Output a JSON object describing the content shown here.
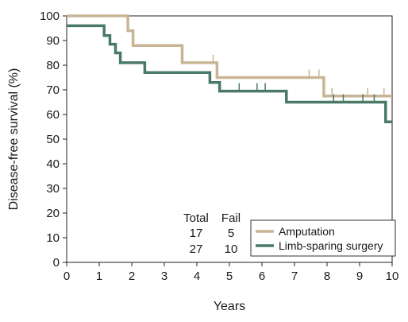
{
  "chart_data": {
    "type": "line",
    "xlabel": "Years",
    "ylabel": "Disease-free survival (%)",
    "xlim": [
      0,
      10
    ],
    "ylim": [
      0,
      100
    ],
    "x_ticks": [
      "0",
      "1",
      "2",
      "3",
      "4",
      "5",
      "6",
      "7",
      "8",
      "9",
      "10"
    ],
    "y_ticks": [
      "0",
      "10",
      "20",
      "30",
      "40",
      "50",
      "60",
      "70",
      "80",
      "90",
      "100"
    ],
    "grid": false,
    "legend_position": "bottom-right",
    "series": [
      {
        "name": "Amputation",
        "color": "#c8b596",
        "total": "17",
        "fail": "5",
        "x": [
          0,
          1.88,
          1.88,
          2.04,
          2.04,
          3.55,
          3.55,
          4.62,
          4.62,
          7.9,
          7.9,
          10.0
        ],
        "y": [
          100,
          100,
          94,
          94,
          88,
          88,
          81,
          81,
          75,
          75,
          67.5,
          67.5
        ],
        "censored": [
          {
            "x": 4.5,
            "y": 81
          },
          {
            "x": 7.45,
            "y": 75
          },
          {
            "x": 7.75,
            "y": 75
          },
          {
            "x": 8.15,
            "y": 67.5
          },
          {
            "x": 9.25,
            "y": 67.5
          },
          {
            "x": 9.75,
            "y": 67.5
          }
        ]
      },
      {
        "name": "Limb-sparing surgery",
        "color": "#4a7a66",
        "total": "27",
        "fail": "10",
        "x": [
          0,
          1.15,
          1.15,
          1.33,
          1.33,
          1.5,
          1.5,
          1.65,
          1.65,
          2.4,
          2.4,
          4.4,
          4.4,
          4.7,
          4.7,
          6.75,
          6.75,
          9.8,
          9.8,
          10.0
        ],
        "y": [
          96,
          96,
          92,
          92,
          88.5,
          88.5,
          85,
          85,
          81,
          81,
          77,
          77,
          73,
          73,
          69.5,
          69.5,
          65,
          65,
          57,
          57
        ],
        "censored": [
          {
            "x": 5.3,
            "y": 69.5
          },
          {
            "x": 5.85,
            "y": 69.5
          },
          {
            "x": 6.1,
            "y": 69.5
          },
          {
            "x": 8.2,
            "y": 65
          },
          {
            "x": 8.5,
            "y": 65
          },
          {
            "x": 9.1,
            "y": 65
          },
          {
            "x": 9.45,
            "y": 65
          }
        ]
      }
    ],
    "table": {
      "headers": [
        "Total",
        "Fail"
      ],
      "rows": [
        [
          "17",
          "5"
        ],
        [
          "27",
          "10"
        ]
      ]
    }
  }
}
